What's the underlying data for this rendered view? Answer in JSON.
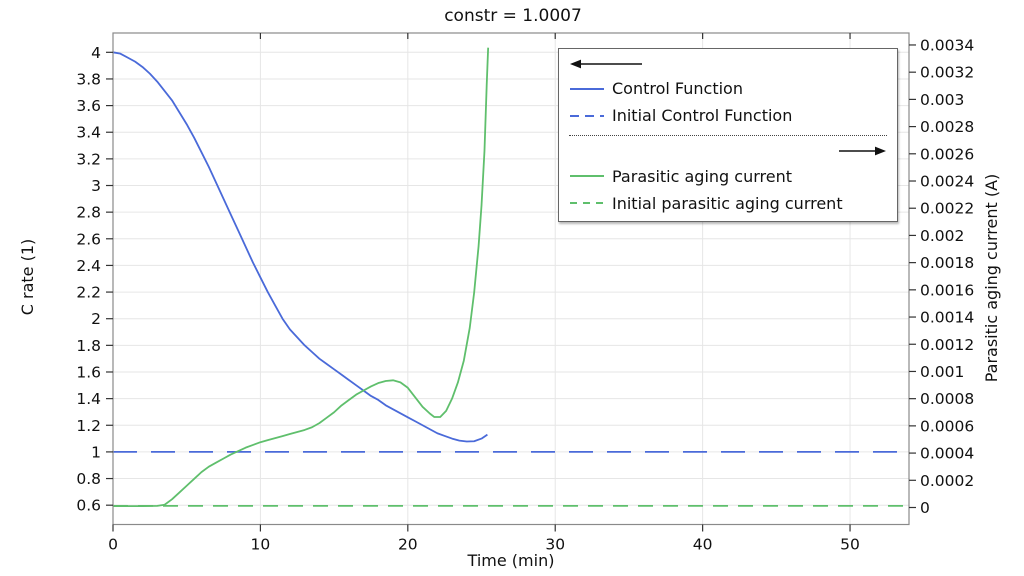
{
  "chart_data": {
    "type": "line",
    "title": "constr = 1.0007",
    "grid": true,
    "legend_position": "top-right",
    "x_axis": {
      "label": "Time (min)",
      "min": 0,
      "max": 54,
      "ticks": [
        0,
        10,
        20,
        30,
        40,
        50
      ],
      "tick_labels": [
        "0",
        "10",
        "20",
        "30",
        "40",
        "50"
      ]
    },
    "left_axis": {
      "label": "C rate (1)",
      "min": 0.455,
      "max": 4.145,
      "ticks": [
        4,
        3.8,
        3.6,
        3.4,
        3.2,
        3,
        2.8,
        2.6,
        2.4,
        2.2,
        2,
        1.8,
        1.6,
        1.4,
        1.2,
        1,
        0.8,
        0.6
      ],
      "tick_labels": [
        "4",
        "3.8",
        "3.6",
        "3.4",
        "3.2",
        "3",
        "2.8",
        "2.6",
        "2.4",
        "2.2",
        "2",
        "1.8",
        "1.6",
        "1.4",
        "1.2",
        "1",
        "0.8",
        "0.6"
      ]
    },
    "right_axis": {
      "label": "Parasitic aging current (A)",
      "min": -0.000125,
      "max": 0.003488,
      "ticks": [
        0.0034,
        0.0032,
        0.003,
        0.0028,
        0.0026,
        0.0024,
        0.0022,
        0.002,
        0.0018,
        0.0016,
        0.0014,
        0.0012,
        0.001,
        0.0008,
        0.0006,
        0.0004,
        0.0002,
        0
      ],
      "tick_labels": [
        "0.0034",
        "0.0032",
        "0.003",
        "0.0028",
        "0.0026",
        "0.0024",
        "0.0022",
        "0.002",
        "0.0018",
        "0.0016",
        "0.0014",
        "0.0012",
        "0.001",
        "0.0008",
        "0.0006",
        "0.0004",
        "0.0002",
        "0"
      ]
    },
    "series": [
      {
        "name": "Control Function",
        "axis": "left",
        "style": "solid",
        "color": "#4a6ad9",
        "points": [
          [
            0,
            4.0
          ],
          [
            0.5,
            3.99
          ],
          [
            1,
            3.96
          ],
          [
            1.5,
            3.93
          ],
          [
            2,
            3.89
          ],
          [
            2.5,
            3.84
          ],
          [
            3,
            3.78
          ],
          [
            3.5,
            3.71
          ],
          [
            4,
            3.64
          ],
          [
            4.5,
            3.55
          ],
          [
            5,
            3.46
          ],
          [
            5.5,
            3.36
          ],
          [
            6,
            3.25
          ],
          [
            6.5,
            3.14
          ],
          [
            7,
            3.02
          ],
          [
            7.5,
            2.9
          ],
          [
            8,
            2.78
          ],
          [
            8.5,
            2.66
          ],
          [
            9,
            2.54
          ],
          [
            9.5,
            2.42
          ],
          [
            10,
            2.31
          ],
          [
            10.5,
            2.2
          ],
          [
            11,
            2.1
          ],
          [
            11.5,
            2.0
          ],
          [
            12,
            1.92
          ],
          [
            12.5,
            1.86
          ],
          [
            13,
            1.8
          ],
          [
            13.5,
            1.75
          ],
          [
            14,
            1.7
          ],
          [
            14.5,
            1.66
          ],
          [
            15,
            1.62
          ],
          [
            15.5,
            1.58
          ],
          [
            16,
            1.54
          ],
          [
            16.5,
            1.5
          ],
          [
            17,
            1.46
          ],
          [
            17.5,
            1.42
          ],
          [
            18,
            1.39
          ],
          [
            18.5,
            1.35
          ],
          [
            19,
            1.32
          ],
          [
            19.5,
            1.29
          ],
          [
            20,
            1.26
          ],
          [
            20.5,
            1.23
          ],
          [
            21,
            1.2
          ],
          [
            21.5,
            1.17
          ],
          [
            22,
            1.14
          ],
          [
            22.5,
            1.12
          ],
          [
            23,
            1.1
          ],
          [
            23.5,
            1.085
          ],
          [
            24,
            1.078
          ],
          [
            24.5,
            1.08
          ],
          [
            25,
            1.1
          ],
          [
            25.4,
            1.13
          ]
        ]
      },
      {
        "name": "Initial Control Function",
        "axis": "left",
        "style": "dashed",
        "color": "#4a6ad9",
        "value": 1.0
      },
      {
        "name": "Parasitic aging current",
        "axis": "right",
        "style": "solid",
        "color": "#5fbf6c",
        "points": [
          [
            0,
            1e-05
          ],
          [
            1,
            1e-05
          ],
          [
            2,
            1e-05
          ],
          [
            3,
            1.2e-05
          ],
          [
            3.5,
            2e-05
          ],
          [
            4,
            6e-05
          ],
          [
            4.5,
            0.00011
          ],
          [
            5,
            0.00016
          ],
          [
            5.5,
            0.00021
          ],
          [
            6,
            0.00026
          ],
          [
            6.5,
            0.0003
          ],
          [
            7,
            0.00033
          ],
          [
            7.5,
            0.00036
          ],
          [
            8,
            0.00039
          ],
          [
            8.5,
            0.000415
          ],
          [
            9,
            0.00044
          ],
          [
            9.5,
            0.00046
          ],
          [
            10,
            0.00048
          ],
          [
            10.5,
            0.000495
          ],
          [
            11,
            0.00051
          ],
          [
            11.5,
            0.000525
          ],
          [
            12,
            0.00054
          ],
          [
            12.5,
            0.000555
          ],
          [
            13,
            0.00057
          ],
          [
            13.5,
            0.00059
          ],
          [
            14,
            0.00062
          ],
          [
            14.5,
            0.00066
          ],
          [
            15,
            0.0007
          ],
          [
            15.5,
            0.00075
          ],
          [
            16,
            0.00079
          ],
          [
            16.5,
            0.00083
          ],
          [
            17,
            0.00086
          ],
          [
            17.5,
            0.00089
          ],
          [
            18,
            0.000915
          ],
          [
            18.5,
            0.00093
          ],
          [
            19,
            0.000935
          ],
          [
            19.5,
            0.00092
          ],
          [
            20,
            0.00088
          ],
          [
            20.5,
            0.00081
          ],
          [
            21,
            0.00074
          ],
          [
            21.5,
            0.00069
          ],
          [
            21.8,
            0.000665
          ],
          [
            22.2,
            0.000665
          ],
          [
            22.6,
            0.00071
          ],
          [
            23,
            0.0008
          ],
          [
            23.4,
            0.00092
          ],
          [
            23.8,
            0.00108
          ],
          [
            24.2,
            0.00132
          ],
          [
            24.5,
            0.00158
          ],
          [
            24.8,
            0.00192
          ],
          [
            25,
            0.00222
          ],
          [
            25.2,
            0.00262
          ],
          [
            25.35,
            0.0031
          ],
          [
            25.45,
            0.00338
          ]
        ]
      },
      {
        "name": "Initial parasitic aging current",
        "axis": "right",
        "style": "dashed",
        "color": "#5fbf6c",
        "value": 1.2e-05
      }
    ]
  },
  "colors": {
    "blue": "#4a6ad9",
    "green": "#5fbf6c",
    "grid": "#e6e6e6",
    "frame": "#8a8a8a",
    "tick": "#333333",
    "text": "#111111",
    "background": "#ffffff"
  }
}
